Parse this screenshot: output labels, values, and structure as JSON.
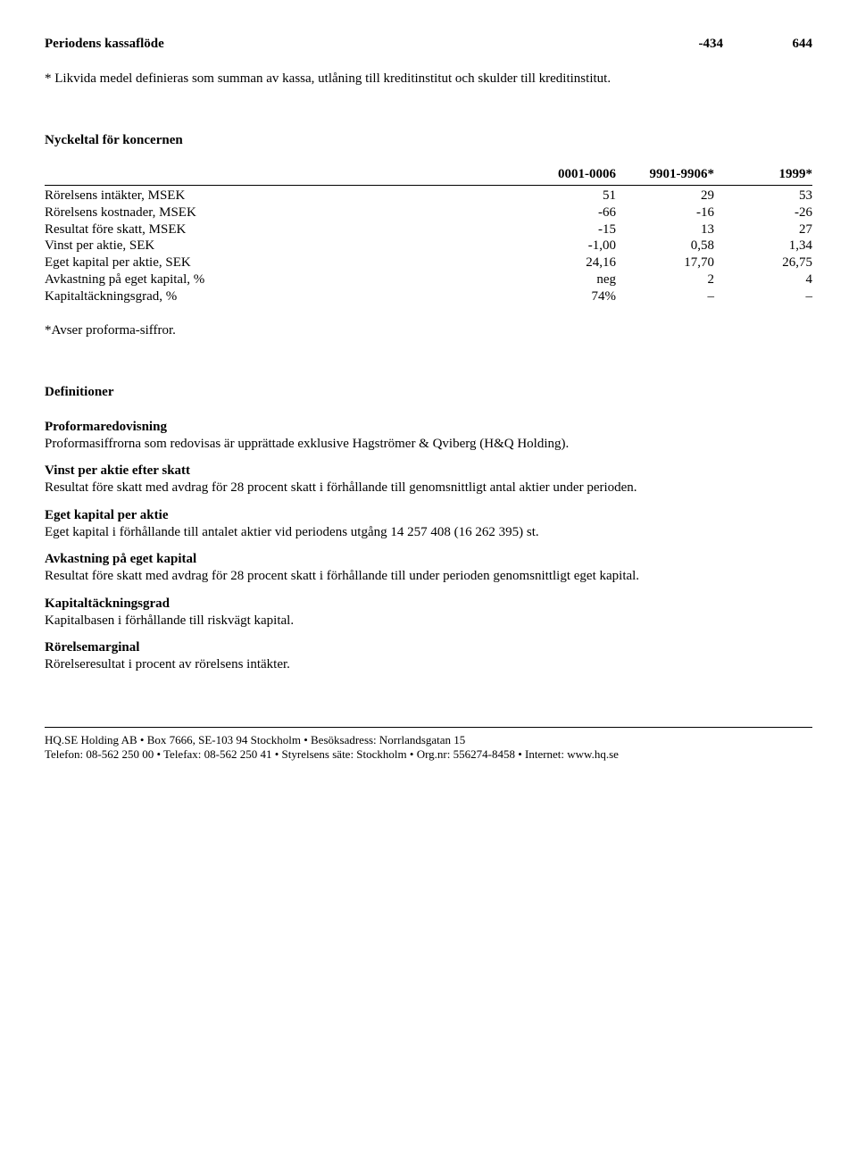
{
  "top_row": {
    "label": "Periodens kassaflöde",
    "v1": "-434",
    "v2": "644"
  },
  "footnote_liquid": "* Likvida medel definieras som summan av kassa, utlåning till kreditinstitut och skulder till kreditinstitut.",
  "nyckeltal_heading": "Nyckeltal för koncernen",
  "nyckeltal_header": {
    "c1": "0001-0006",
    "c2": "9901-9906*",
    "c3": "1999*"
  },
  "nyckeltal_rows": {
    "r0": {
      "label": "Rörelsens intäkter, MSEK",
      "v1": "51",
      "v2": "29",
      "v3": "53"
    },
    "r1": {
      "label": "Rörelsens kostnader, MSEK",
      "v1": "-66",
      "v2": "-16",
      "v3": "-26"
    },
    "r2": {
      "label": "Resultat före skatt, MSEK",
      "v1": "-15",
      "v2": "13",
      "v3": "27"
    },
    "r3": {
      "label": "Vinst per aktie, SEK",
      "v1": "-1,00",
      "v2": "0,58",
      "v3": "1,34"
    },
    "r4": {
      "label": "Eget kapital per aktie, SEK",
      "v1": "24,16",
      "v2": "17,70",
      "v3": "26,75"
    },
    "r5": {
      "label": "Avkastning på eget kapital, %",
      "v1": "neg",
      "v2": "2",
      "v3": "4"
    },
    "r6": {
      "label": "Kapitaltäckningsgrad, %",
      "v1": "74%",
      "v2": "–",
      "v3": "–"
    }
  },
  "avser_note": "*Avser proforma-siffror.",
  "defs_heading": "Definitioner",
  "defs": {
    "d0": {
      "title": "Proformaredovisning",
      "body": "Proformasiffrorna som redovisas är upprättade exklusive Hagströmer & Qviberg (H&Q Holding)."
    },
    "d1": {
      "title": "Vinst per aktie efter skatt",
      "body": "Resultat före skatt med avdrag för 28 procent skatt i förhållande till genomsnittligt antal aktier under perioden."
    },
    "d2": {
      "title": "Eget kapital per aktie",
      "body": "Eget kapital i förhållande till antalet aktier vid periodens utgång 14 257 408 (16 262 395) st."
    },
    "d3": {
      "title": "Avkastning på eget kapital",
      "body": "Resultat före skatt med avdrag för 28 procent skatt i förhållande till under perioden genomsnittligt eget kapital."
    },
    "d4": {
      "title": "Kapitaltäckningsgrad",
      "body": "Kapitalbasen i förhållande till riskvägt kapital."
    },
    "d5": {
      "title": "Rörelsemarginal",
      "body": "Rörelseresultat i procent av rörelsens intäkter."
    }
  },
  "footer": {
    "line1": "HQ.SE Holding AB • Box 7666, SE-103 94 Stockholm • Besöksadress: Norrlandsgatan 15",
    "line2": "Telefon: 08-562 250 00 • Telefax: 08-562 250 41 • Styrelsens säte: Stockholm • Org.nr: 556274-8458 • Internet: www.hq.se"
  }
}
